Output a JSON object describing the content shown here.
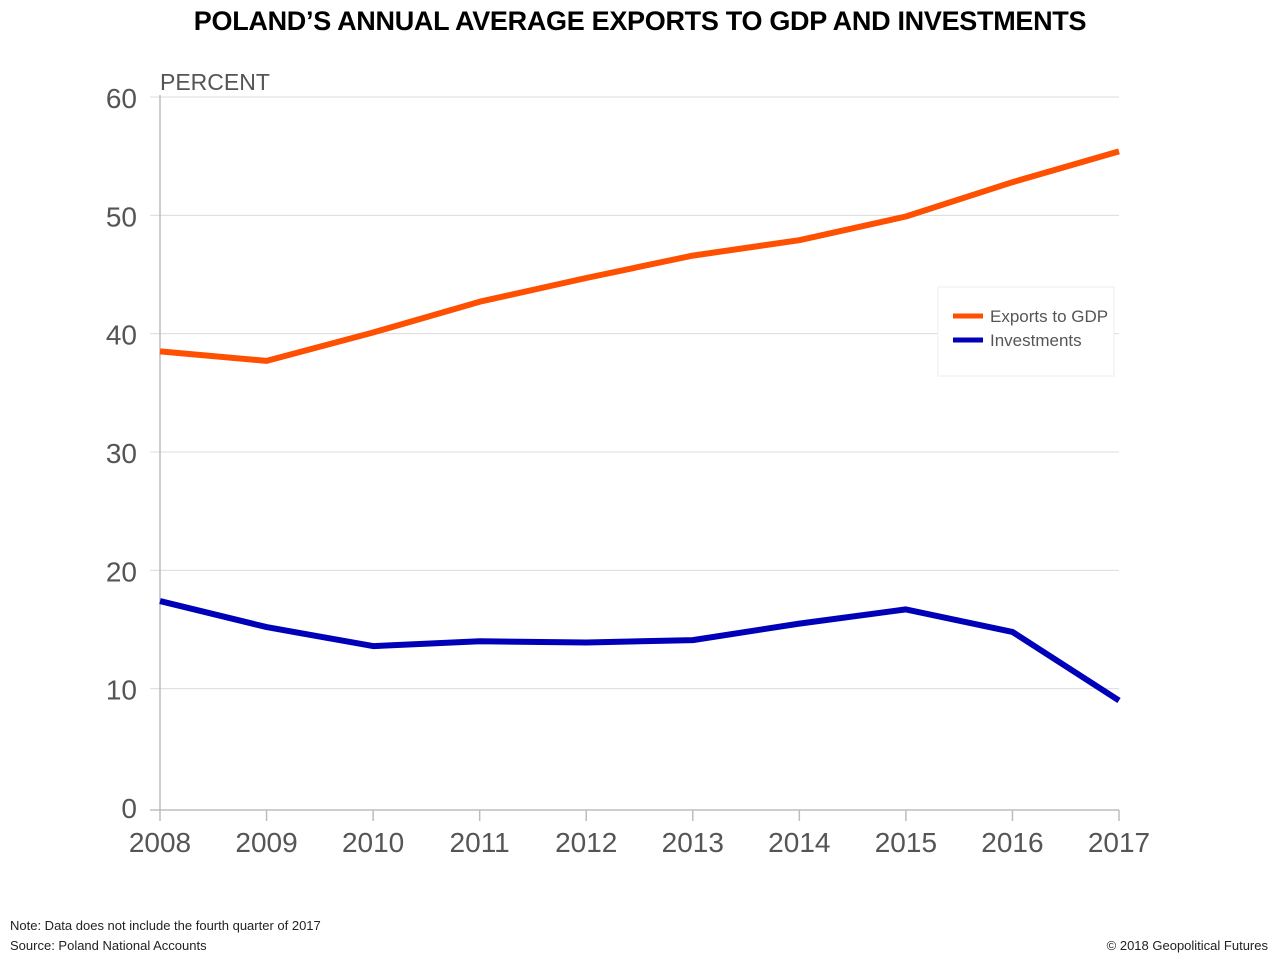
{
  "title": "POLAND’S ANNUAL AVERAGE EXPORTS TO GDP AND INVESTMENTS",
  "note": "Note:  Data does not include the fourth quarter of 2017",
  "source": "Source: Poland National Accounts",
  "copyright": "© 2018 Geopolitical Futures",
  "chart_data": {
    "type": "line",
    "ylabel": "PERCENT",
    "xlabel": "",
    "x": [
      "2008",
      "2009",
      "2010",
      "2011",
      "2012",
      "2013",
      "2014",
      "2015",
      "2016",
      "2017"
    ],
    "ylim": [
      0,
      60
    ],
    "yticks": [
      0,
      10,
      20,
      30,
      40,
      50,
      60
    ],
    "grid": true,
    "legend_position": "right",
    "series": [
      {
        "name": "Exports to GDP",
        "color": "#ff4f00",
        "values": [
          38.5,
          37.7,
          40.1,
          42.7,
          44.7,
          46.6,
          47.9,
          49.9,
          52.8,
          55.4
        ]
      },
      {
        "name": "Investments",
        "color": "#0000b8",
        "values": [
          17.4,
          15.2,
          13.6,
          14.0,
          13.9,
          14.1,
          15.5,
          16.7,
          14.8,
          9.0
        ]
      }
    ]
  }
}
